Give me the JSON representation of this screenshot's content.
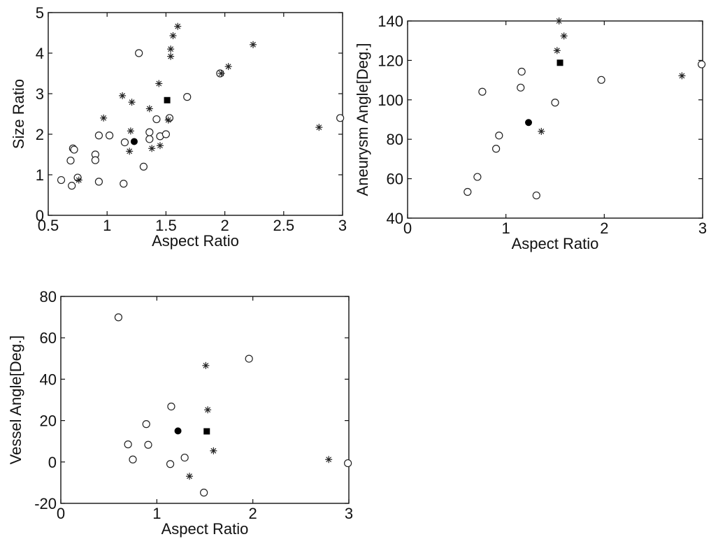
{
  "chart_data": [
    {
      "type": "scatter",
      "xlabel": "Aspect Ratio",
      "ylabel": "Size Ratio",
      "xlim": [
        0.5,
        3
      ],
      "ylim": [
        0,
        5
      ],
      "xticks": [
        "0.5",
        "1",
        "1.5",
        "2",
        "2.5",
        "3"
      ],
      "yticks": [
        "0",
        "1",
        "2",
        "3",
        "4",
        "5"
      ],
      "grid": false,
      "legend": "none",
      "series": [
        {
          "marker": "circle-open",
          "points": [
            [
              0.61,
              0.87
            ],
            [
              0.69,
              1.35
            ],
            [
              0.7,
              0.73
            ],
            [
              0.71,
              1.65
            ],
            [
              0.72,
              1.62
            ],
            [
              0.75,
              0.93
            ],
            [
              0.9,
              1.5
            ],
            [
              0.9,
              1.36
            ],
            [
              0.93,
              1.97
            ],
            [
              0.93,
              0.83
            ],
            [
              1.02,
              1.97
            ],
            [
              1.14,
              0.78
            ],
            [
              1.15,
              1.8
            ],
            [
              1.27,
              4.0
            ],
            [
              1.31,
              1.2
            ],
            [
              1.36,
              1.88
            ],
            [
              1.36,
              2.05
            ],
            [
              1.42,
              2.37
            ],
            [
              1.45,
              1.95
            ],
            [
              1.5,
              2.0
            ],
            [
              1.53,
              2.4
            ],
            [
              1.68,
              2.92
            ],
            [
              1.96,
              3.5
            ],
            [
              2.98,
              2.4
            ]
          ]
        },
        {
          "marker": "star",
          "points": [
            [
              0.76,
              0.87
            ],
            [
              1.13,
              2.95
            ],
            [
              1.19,
              1.58
            ],
            [
              1.2,
              2.08
            ],
            [
              1.21,
              2.79
            ],
            [
              1.36,
              2.63
            ],
            [
              1.38,
              1.65
            ],
            [
              1.44,
              3.25
            ],
            [
              1.45,
              1.72
            ],
            [
              1.52,
              2.35
            ],
            [
              1.54,
              4.1
            ],
            [
              1.54,
              3.92
            ],
            [
              1.56,
              4.43
            ],
            [
              1.6,
              4.66
            ],
            [
              1.97,
              3.5
            ],
            [
              2.03,
              3.67
            ],
            [
              2.24,
              4.21
            ],
            [
              2.8,
              2.17
            ],
            [
              0.97,
              2.4
            ]
          ]
        },
        {
          "marker": "circle-filled",
          "points": [
            [
              1.23,
              1.82
            ]
          ]
        },
        {
          "marker": "square-filled",
          "points": [
            [
              1.51,
              2.84
            ]
          ]
        }
      ]
    },
    {
      "type": "scatter",
      "xlabel": "Aspect Ratio",
      "ylabel": "Aneurysm Angle[Deg.]",
      "xlim": [
        0,
        3
      ],
      "ylim": [
        40,
        140
      ],
      "xticks": [
        "0",
        "1",
        "2",
        "3"
      ],
      "yticks": [
        "40",
        "60",
        "80",
        "100",
        "120",
        "140"
      ],
      "grid": false,
      "legend": "none",
      "series": [
        {
          "marker": "circle-open",
          "points": [
            [
              0.61,
              53.3
            ],
            [
              0.71,
              60.9
            ],
            [
              0.76,
              104.1
            ],
            [
              0.9,
              75.2
            ],
            [
              0.93,
              81.9
            ],
            [
              1.15,
              106.2
            ],
            [
              1.16,
              114.3
            ],
            [
              1.31,
              51.5
            ],
            [
              1.5,
              98.6
            ],
            [
              1.97,
              110.1
            ],
            [
              2.99,
              118.0
            ]
          ]
        },
        {
          "marker": "star",
          "points": [
            [
              1.36,
              84.0
            ],
            [
              1.52,
              125.0
            ],
            [
              1.54,
              140.0
            ],
            [
              1.59,
              132.4
            ],
            [
              2.79,
              112.2
            ]
          ]
        },
        {
          "marker": "circle-filled",
          "points": [
            [
              1.23,
              88.5
            ]
          ]
        },
        {
          "marker": "square-filled",
          "points": [
            [
              1.55,
              118.8
            ]
          ]
        }
      ]
    },
    {
      "type": "scatter",
      "xlabel": "Aspect Ratio",
      "ylabel": "Vessel Angle[Deg.]",
      "xlim": [
        0,
        3
      ],
      "ylim": [
        -20,
        80
      ],
      "xticks": [
        "0",
        "1",
        "2",
        "3"
      ],
      "yticks": [
        "-20",
        "0",
        "20",
        "40",
        "60",
        "80"
      ],
      "grid": false,
      "legend": "none",
      "series": [
        {
          "marker": "circle-open",
          "points": [
            [
              0.6,
              69.9
            ],
            [
              0.7,
              8.5
            ],
            [
              0.75,
              1.2
            ],
            [
              0.89,
              18.3
            ],
            [
              0.91,
              8.3
            ],
            [
              1.14,
              -1.0
            ],
            [
              1.15,
              26.8
            ],
            [
              1.29,
              2.1
            ],
            [
              1.49,
              -14.8
            ],
            [
              1.96,
              49.9
            ],
            [
              2.99,
              -0.6
            ]
          ]
        },
        {
          "marker": "star",
          "points": [
            [
              1.34,
              -6.9
            ],
            [
              1.51,
              46.6
            ],
            [
              1.53,
              25.2
            ],
            [
              1.59,
              5.4
            ],
            [
              2.79,
              1.2
            ]
          ]
        },
        {
          "marker": "circle-filled",
          "points": [
            [
              1.22,
              15.0
            ]
          ]
        },
        {
          "marker": "square-filled",
          "points": [
            [
              1.52,
              14.8
            ]
          ]
        }
      ]
    }
  ]
}
